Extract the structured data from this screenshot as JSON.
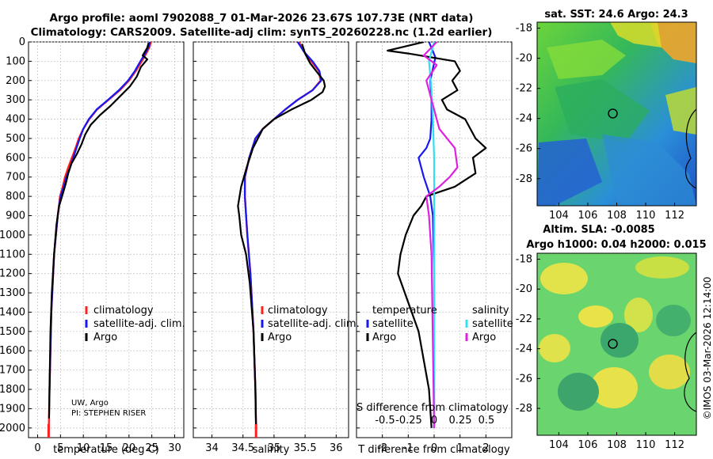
{
  "titles": {
    "line1": "Argo profile: aoml 7902088_7 01-Mar-2026 23.67S 107.73E (NRT data)",
    "line2": "Climatology: CARS2009. Satellite-adj clim: synTS_20260228.nc (1.2d earlier)",
    "sst": "sat. SST: 24.6 Argo: 24.3",
    "sla1": "Altim. SLA: -0.0085",
    "sla2": "Argo h1000: 0.04 h2000: 0.015",
    "credit": "©IMOS 03-Mar-2026 12:14:00"
  },
  "notes": {
    "line1": "UW, Argo",
    "line2": "PI: STEPHEN RISER"
  },
  "legend": {
    "climatology": "climatology",
    "satellite_adj": "satellite-adj. clim.",
    "argo": "Argo",
    "temperature": "temperature",
    "salinity": "salinity",
    "satellite": "satellite"
  },
  "colors": {
    "climatology": "#ff2020",
    "satellite_adj": "#1818f0",
    "argo": "#000000",
    "temp_sat": "#1818f0",
    "sal_sat": "#30e0f0",
    "sal_argo": "#e020e0"
  },
  "chart_data": [
    {
      "type": "line",
      "xlabel": "temperature (deg C)",
      "ylabel": "",
      "xlim": [
        -2,
        32
      ],
      "ylim": [
        2050,
        0
      ],
      "xticks": [
        0,
        5,
        10,
        15,
        20,
        25,
        30
      ],
      "yticks": [
        0,
        100,
        200,
        300,
        400,
        500,
        600,
        700,
        800,
        900,
        1000,
        1100,
        1200,
        1300,
        1400,
        1500,
        1600,
        1700,
        1800,
        1900,
        2000
      ],
      "series": [
        {
          "name": "climatology",
          "x": [
            24.8,
            24.5,
            24.0,
            22.8,
            21.5,
            20.0,
            18.0,
            15.5,
            13.0,
            11.3,
            10.0,
            9.0,
            8.3,
            7.5,
            6.7,
            6.0,
            5.5,
            4.9,
            4.4,
            3.6,
            3.0,
            2.6,
            2.4
          ],
          "y": [
            0,
            25,
            50,
            100,
            150,
            200,
            250,
            300,
            350,
            400,
            450,
            500,
            550,
            600,
            650,
            700,
            750,
            800,
            900,
            1100,
            1400,
            1800,
            2050
          ]
        },
        {
          "name": "satellite-adj. clim.",
          "x": [
            24.6,
            24.3,
            23.8,
            22.5,
            21.3,
            19.8,
            17.8,
            15.4,
            12.9,
            11.2,
            10.0,
            9.2,
            8.5,
            7.8,
            7.1,
            6.3,
            5.7,
            5.0,
            4.4,
            3.6,
            3.0,
            2.6
          ],
          "y": [
            0,
            25,
            50,
            100,
            150,
            200,
            250,
            300,
            350,
            400,
            450,
            500,
            550,
            600,
            650,
            700,
            750,
            800,
            900,
            1100,
            1400,
            1800
          ]
        },
        {
          "name": "Argo",
          "x": [
            24.3,
            24.0,
            23.0,
            24.0,
            22.6,
            21.7,
            20.2,
            18.1,
            16.0,
            13.6,
            11.6,
            10.4,
            9.6,
            8.6,
            7.4,
            6.7,
            6.2,
            5.6,
            4.7,
            4.1,
            3.6,
            3.1,
            2.8,
            2.5
          ],
          "y": [
            5,
            30,
            70,
            90,
            130,
            180,
            230,
            280,
            330,
            380,
            430,
            480,
            530,
            580,
            630,
            680,
            730,
            780,
            850,
            950,
            1100,
            1300,
            1500,
            1950
          ]
        }
      ]
    },
    {
      "type": "line",
      "xlabel": "salinity",
      "ylabel": "",
      "xlim": [
        33.7,
        36.2
      ],
      "ylim": [
        2050,
        0
      ],
      "xticks": [
        34,
        34.5,
        35,
        35.5,
        36
      ],
      "series": [
        {
          "name": "climatology",
          "x": [
            35.4,
            35.48,
            35.6,
            35.72,
            35.75,
            35.62,
            35.38,
            35.18,
            35.0,
            34.82,
            34.7,
            34.6,
            34.53,
            34.53,
            34.57,
            34.62,
            34.67,
            34.7,
            34.71
          ],
          "y": [
            0,
            50,
            100,
            150,
            200,
            250,
            300,
            350,
            400,
            450,
            500,
            600,
            700,
            800,
            1000,
            1200,
            1500,
            1800,
            2000
          ]
        },
        {
          "name": "satellite-adj. clim.",
          "x": [
            35.38,
            35.48,
            35.62,
            35.73,
            35.76,
            35.62,
            35.38,
            35.18,
            35.0,
            34.82,
            34.7,
            34.6,
            34.53,
            34.53,
            34.57,
            34.62,
            34.67,
            34.7,
            34.71
          ],
          "y": [
            0,
            50,
            100,
            150,
            200,
            250,
            300,
            350,
            400,
            450,
            500,
            600,
            700,
            800,
            1000,
            1200,
            1500,
            1800,
            2000
          ]
        },
        {
          "name": "Argo",
          "x": [
            35.45,
            35.5,
            35.58,
            35.7,
            35.8,
            35.82,
            35.78,
            35.6,
            35.28,
            35.0,
            34.82,
            34.66,
            34.56,
            34.47,
            34.42,
            34.44,
            34.47,
            34.55,
            34.61,
            34.67,
            34.7,
            34.71
          ],
          "y": [
            10,
            60,
            110,
            160,
            200,
            230,
            260,
            300,
            350,
            400,
            450,
            550,
            650,
            750,
            850,
            900,
            1000,
            1100,
            1250,
            1500,
            1800,
            2000
          ]
        }
      ]
    },
    {
      "type": "line",
      "xlabel": "T difference from climatology",
      "xlabel_top": "S difference from climatology",
      "xlim": [
        -3,
        3
      ],
      "ylim": [
        2050,
        0
      ],
      "xticks": [
        -2,
        -1,
        0,
        1,
        2
      ],
      "xticklabels": [
        "-2",
        "-1",
        "0",
        "1",
        "2"
      ],
      "xticks_top": [
        "-0.5",
        "-0.25",
        "0",
        "0.25",
        "0.5"
      ],
      "series": [
        {
          "name": "temperature satellite",
          "x": [
            -0.2,
            0.05,
            -0.15,
            -0.1,
            -0.1,
            -0.15,
            -0.3,
            -0.6,
            -0.4,
            -0.15,
            -0.05,
            0.0,
            0.0
          ],
          "y": [
            0,
            80,
            200,
            300,
            400,
            500,
            550,
            600,
            700,
            800,
            900,
            1200,
            2000
          ]
        },
        {
          "name": "temperature Argo",
          "x": [
            -0.4,
            -1.8,
            -1.0,
            0.8,
            1.0,
            0.7,
            0.9,
            0.3,
            0.5,
            1.2,
            1.6,
            2.0,
            1.5,
            1.6,
            0.8,
            -0.3,
            -0.5,
            -0.8,
            -1.1,
            -1.3,
            -1.4,
            -0.6,
            -0.2,
            -0.1
          ],
          "y": [
            0,
            45,
            60,
            100,
            150,
            200,
            250,
            300,
            350,
            400,
            500,
            550,
            600,
            680,
            750,
            800,
            850,
            900,
            1000,
            1100,
            1200,
            1500,
            1800,
            2000
          ]
        },
        {
          "name": "salinity satellite",
          "x": [
            0.0,
            -0.2,
            -0.1,
            -0.05,
            0.0,
            0.0,
            0.0,
            0.0,
            0.0
          ],
          "y": [
            0,
            100,
            250,
            400,
            600,
            800,
            1000,
            1500,
            2000
          ]
        },
        {
          "name": "salinity Argo",
          "x": [
            0.1,
            -0.4,
            0.1,
            -0.3,
            -0.1,
            0.2,
            0.8,
            0.9,
            0.6,
            0.2,
            -0.3,
            -0.2,
            -0.1,
            0.0
          ],
          "y": [
            0,
            70,
            120,
            200,
            300,
            450,
            550,
            650,
            700,
            750,
            800,
            900,
            1100,
            2000
          ]
        }
      ]
    },
    {
      "type": "heatmap",
      "title": "sat. SST: 24.6 Argo: 24.3",
      "xlim": [
        102.5,
        113.5
      ],
      "ylim": [
        -29.8,
        -17.6
      ],
      "xticks": [
        104,
        106,
        108,
        110,
        112
      ],
      "yticks": [
        -18,
        -20,
        -22,
        -24,
        -26,
        -28
      ],
      "marker": [
        107.73,
        -23.67
      ]
    },
    {
      "type": "heatmap",
      "title": "Altim. SLA: -0.0085 / Argo h1000: 0.04 h2000: 0.015",
      "xlim": [
        102.5,
        113.5
      ],
      "ylim": [
        -29.8,
        -17.6
      ],
      "xticks": [
        104,
        106,
        108,
        110,
        112
      ],
      "yticks": [
        -18,
        -20,
        -22,
        -24,
        -26,
        -28
      ],
      "marker": [
        107.73,
        -23.67
      ]
    }
  ]
}
